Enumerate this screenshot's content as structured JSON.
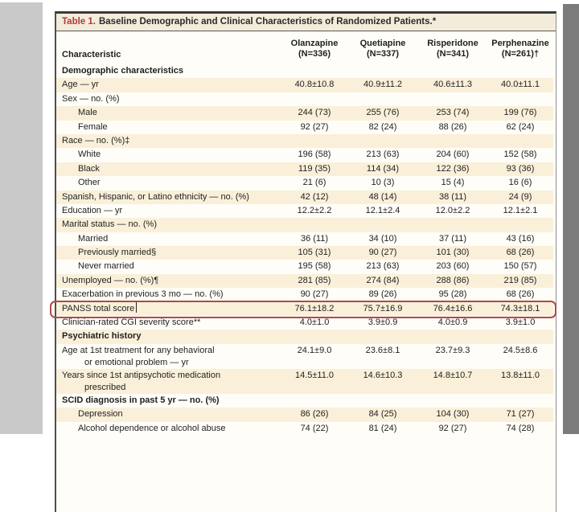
{
  "colors": {
    "title_red": "#b23a3c",
    "row_stripe_cream": "#faf0da",
    "annotation_red": "#ae4a49",
    "left_strip_gray": "#c9c9c9",
    "right_strip_gray": "#7b7b7b"
  },
  "table": {
    "title": {
      "label": "Table 1.",
      "text": "Baseline Demographic and Clinical Characteristics of Randomized Patients.*"
    },
    "columns": {
      "characteristic_header": "Characteristic",
      "groups": [
        {
          "name": "Olanzapine",
          "n": "(N=336)"
        },
        {
          "name": "Quetiapine",
          "n": "(N=337)"
        },
        {
          "name": "Risperidone",
          "n": "(N=341)"
        },
        {
          "name": "Perphenazine",
          "n": "(N=261)†"
        }
      ]
    },
    "rows": [
      {
        "type": "section",
        "label": "Demographic characteristics",
        "shade": false
      },
      {
        "label": "Age — yr",
        "shade": true,
        "values": [
          "40.8±10.8",
          "40.9±11.2",
          "40.6±11.3",
          "40.0±11.1"
        ]
      },
      {
        "label": "Sex — no. (%)",
        "shade": false
      },
      {
        "label": "Male",
        "indent": 1,
        "shade": true,
        "values": [
          "244 (73)",
          "255 (76)",
          "253 (74)",
          "199 (76)"
        ]
      },
      {
        "label": "Female",
        "indent": 1,
        "shade": false,
        "values": [
          "92 (27)",
          "82 (24)",
          "88 (26)",
          "62 (24)"
        ]
      },
      {
        "label": "Race — no. (%)‡",
        "shade": true
      },
      {
        "label": "White",
        "indent": 1,
        "shade": false,
        "values": [
          "196 (58)",
          "213 (63)",
          "204 (60)",
          "152 (58)"
        ]
      },
      {
        "label": "Black",
        "indent": 1,
        "shade": true,
        "values": [
          "119 (35)",
          "114 (34)",
          "122 (36)",
          "93 (36)"
        ]
      },
      {
        "label": "Other",
        "indent": 1,
        "shade": false,
        "values": [
          "21 (6)",
          "10 (3)",
          "15 (4)",
          "16 (6)"
        ]
      },
      {
        "label": "Spanish, Hispanic, or Latino ethnicity — no. (%)",
        "shade": true,
        "values": [
          "42 (12)",
          "48 (14)",
          "38 (11)",
          "24 (9)"
        ]
      },
      {
        "label": "Education — yr",
        "shade": false,
        "values": [
          "12.2±2.2",
          "12.1±2.4",
          "12.0±2.2",
          "12.1±2.1"
        ]
      },
      {
        "label": "Marital status — no. (%)",
        "shade": true
      },
      {
        "label": "Married",
        "indent": 1,
        "shade": false,
        "values": [
          "36 (11)",
          "34 (10)",
          "37 (11)",
          "43 (16)"
        ]
      },
      {
        "label": "Previously married§",
        "indent": 1,
        "shade": true,
        "values": [
          "105 (31)",
          "90 (27)",
          "101 (30)",
          "68 (26)"
        ]
      },
      {
        "label": "Never married",
        "indent": 1,
        "shade": false,
        "values": [
          "195 (58)",
          "213 (63)",
          "203 (60)",
          "150 (57)"
        ]
      },
      {
        "label": "Unemployed — no. (%)¶",
        "shade": true,
        "values": [
          "281 (85)",
          "274 (84)",
          "288 (86)",
          "219 (85)"
        ]
      },
      {
        "label": "Exacerbation in previous 3 mo — no. (%)",
        "shade": false,
        "values": [
          "90 (27)",
          "89 (26)",
          "95 (28)",
          "68 (26)"
        ]
      },
      {
        "label": "PANSS total score",
        "shade": true,
        "caret": true,
        "highlighted": true,
        "values": [
          "76.1±18.2",
          "75.7±16.9",
          "76.4±16.6",
          "74.3±18.1"
        ]
      },
      {
        "label": "Clinician-rated CGI severity score**",
        "shade": false,
        "values": [
          "4.0±1.0",
          "3.9±0.9",
          "4.0±0.9",
          "3.9±1.0"
        ]
      },
      {
        "type": "section",
        "label": "Psychiatric history",
        "shade": true
      },
      {
        "label": "Age at 1st treatment for any behavioral",
        "label2": "or emotional problem — yr",
        "shade": false,
        "values": [
          "24.1±9.0",
          "23.6±8.1",
          "23.7±9.3",
          "24.5±8.6"
        ]
      },
      {
        "label": "Years since 1st antipsychotic medication",
        "label2": "prescribed",
        "shade": true,
        "values": [
          "14.5±11.0",
          "14.6±10.3",
          "14.8±10.7",
          "13.8±11.0"
        ]
      },
      {
        "type": "section",
        "label": "SCID diagnosis in past 5 yr — no. (%)",
        "shade": false
      },
      {
        "label": "Depression",
        "indent": 1,
        "shade": true,
        "values": [
          "86 (26)",
          "84 (25)",
          "104 (30)",
          "71 (27)"
        ]
      },
      {
        "label": "Alcohol dependence or alcohol abuse",
        "indent": 1,
        "shade": false,
        "values": [
          "74 (22)",
          "81 (24)",
          "92 (27)",
          "74 (28)"
        ]
      }
    ]
  },
  "annotation": {
    "highlighted_row": "PANSS total score",
    "box_color": "#ae4a49"
  }
}
